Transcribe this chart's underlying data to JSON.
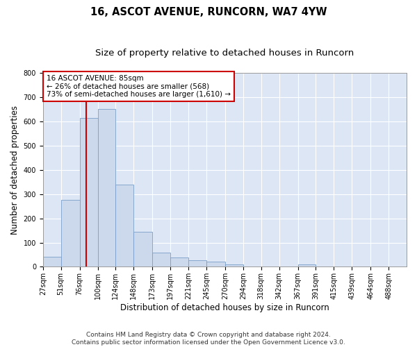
{
  "title": "16, ASCOT AVENUE, RUNCORN, WA7 4YW",
  "subtitle": "Size of property relative to detached houses in Runcorn",
  "xlabel": "Distribution of detached houses by size in Runcorn",
  "ylabel": "Number of detached properties",
  "bar_color": "#ccd9ed",
  "bar_edge_color": "#7a9ec8",
  "bg_color": "#dce6f5",
  "grid_color": "#ffffff",
  "vline_color": "#cc0000",
  "vline_x": 85,
  "annotation_text": "16 ASCOT AVENUE: 85sqm\n← 26% of detached houses are smaller (568)\n73% of semi-detached houses are larger (1,610) →",
  "annotation_box_color": "#ffffff",
  "annotation_box_edge": "#cc0000",
  "bins": [
    27,
    51,
    76,
    100,
    124,
    148,
    173,
    197,
    221,
    245,
    270,
    294,
    318,
    342,
    367,
    391,
    415,
    439,
    464,
    488,
    512
  ],
  "values": [
    40,
    275,
    615,
    650,
    340,
    143,
    58,
    38,
    28,
    22,
    10,
    0,
    0,
    0,
    10,
    0,
    0,
    0,
    0,
    0
  ],
  "ylim": [
    0,
    800
  ],
  "yticks": [
    0,
    100,
    200,
    300,
    400,
    500,
    600,
    700,
    800
  ],
  "footer": "Contains HM Land Registry data © Crown copyright and database right 2024.\nContains public sector information licensed under the Open Government Licence v3.0.",
  "title_fontsize": 10.5,
  "subtitle_fontsize": 9.5,
  "label_fontsize": 8.5,
  "tick_fontsize": 7,
  "footer_fontsize": 6.5,
  "annot_fontsize": 7.5
}
